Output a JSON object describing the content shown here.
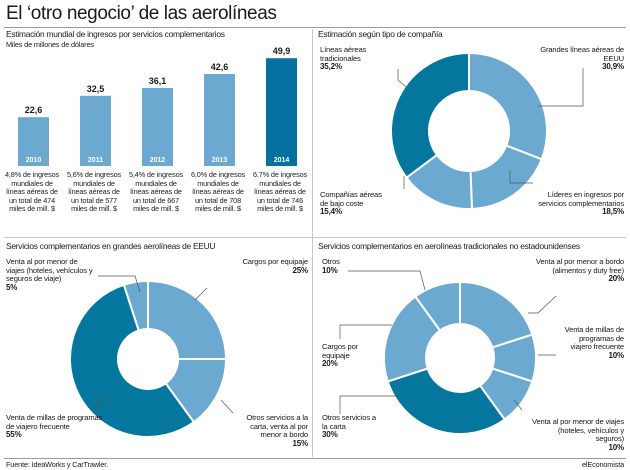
{
  "title": "El ‘otro negocio’ de las aerolíneas",
  "colors": {
    "dark": "#05779f",
    "light": "#6ba9d0",
    "bar": "#6ba9d0",
    "bar_highlight": "#0571a0",
    "text": "#1a1a1a"
  },
  "panels": {
    "bars": {
      "title": "Estimación mundial de ingresos por servicios complementarios",
      "subtitle": "Miles de millones de dólares"
    },
    "type": {
      "title": "Estimación según tipo de compañía"
    },
    "us": {
      "title": "Servicios complementarios en grandes aerolíneas de EEUU"
    },
    "trad": {
      "title": "Servicios complementarios en aerolíneas tradicionales no estadounidenses"
    }
  },
  "chart_data": [
    {
      "type": "bar",
      "title": "Estimación mundial de ingresos por servicios complementarios",
      "ylabel": "Miles de millones de dólares",
      "categories": [
        "2010",
        "2011",
        "2012",
        "2013",
        "2014"
      ],
      "values": [
        22.6,
        32.5,
        36.1,
        42.6,
        49.9
      ],
      "value_labels": [
        "22,6",
        "32,5",
        "36,1",
        "42,6",
        "49,9"
      ],
      "highlight_index": 4,
      "ylim": [
        0,
        50
      ],
      "annotations": [
        "4,8% de ingresos mundiales de líneas aéreas de un total de 474 miles de mill. $",
        "5,6% de ingresos mundiales de líneas aéreas de un total de 577 miles de mill. $",
        "5,4% de ingresos mundiales de líneas aéreas de un total de 667 miles de mill. $",
        "6,0% de ingresos mundiales de líneas aéreas de un total de 708 miles de mill. $",
        "6,7% de ingresos mundiales de líneas aéreas de un total de 746 miles de mill. $"
      ]
    },
    {
      "type": "pie",
      "title": "Estimación según tipo de compañía",
      "labels": [
        "Grandes líneas aéreas de EEUU",
        "Líderes en ingresos por servicios complementarios",
        "Compañías aéreas de bajo coste",
        "Líneas aéreas tradicionales"
      ],
      "values": [
        30.9,
        18.5,
        15.4,
        35.2
      ],
      "value_labels": [
        "30,9%",
        "18,5%",
        "15,4%",
        "35,2%"
      ],
      "colors": [
        "#6ba9d0",
        "#6ba9d0",
        "#6ba9d0",
        "#05779f"
      ]
    },
    {
      "type": "pie",
      "title": "Servicios complementarios en grandes aerolíneas de EEUU",
      "labels": [
        "Cargos por equipaje",
        "Otros servicios a la carta, venta al por menor a bordo",
        "Venta de millas de programas de viajero frecuente",
        "Venta al por menor de viajes (hoteles, vehículos y seguros de viaje)"
      ],
      "values": [
        25,
        15,
        55,
        5
      ],
      "value_labels": [
        "25%",
        "15%",
        "55%",
        "5%"
      ],
      "colors": [
        "#6ba9d0",
        "#6ba9d0",
        "#05779f",
        "#6ba9d0"
      ]
    },
    {
      "type": "pie",
      "title": "Servicios complementarios en aerolíneas tradicionales no estadounidenses",
      "labels": [
        "Venta al por menor a bordo (alimentos y duty free)",
        "Venta de millas de programas de viajero frecuente",
        "Venta al por menor de viajes (hoteles, vehículos y seguros)",
        "Otros servicios a la carta",
        "Cargos por equipaje",
        "Otros"
      ],
      "values": [
        20,
        10,
        10,
        30,
        20,
        10
      ],
      "value_labels": [
        "20%",
        "10%",
        "10%",
        "30%",
        "20%",
        "10%"
      ],
      "colors": [
        "#6ba9d0",
        "#6ba9d0",
        "#6ba9d0",
        "#05779f",
        "#6ba9d0",
        "#6ba9d0"
      ]
    }
  ],
  "footer": {
    "source": "Fuente: IdeaWorks y CarTrawler.",
    "brand": "elEconomista"
  }
}
